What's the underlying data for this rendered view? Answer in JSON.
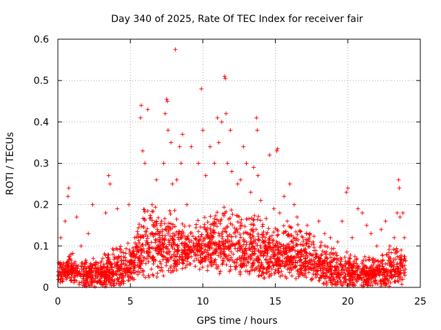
{
  "chart_data": {
    "type": "scatter",
    "title": "Day 340 of 2025, Rate Of TEC Index for receiver fair",
    "xlabel": "GPS time / hours",
    "ylabel": "ROTI / TECUs",
    "xlim": [
      0,
      25
    ],
    "ylim": [
      0,
      0.6
    ],
    "xticks": [
      0,
      5,
      10,
      15,
      20,
      25
    ],
    "xtick_labels": [
      "0",
      "5",
      "10",
      "15",
      "20",
      "25"
    ],
    "yticks": [
      0,
      0.1,
      0.2,
      0.3,
      0.4,
      0.5,
      0.6
    ],
    "ytick_labels": [
      "0",
      "0.1",
      "0.2",
      "0.3",
      "0.4",
      "0.5",
      "0.6"
    ],
    "grid": true,
    "marker": "+",
    "color": "#ff0000",
    "series": [
      {
        "name": "ROTI",
        "x": [
          0.2,
          0.5,
          0.7,
          0.75,
          0.9,
          1.3,
          1.6,
          2.1,
          2.4,
          3.3,
          3.5,
          3.6,
          4.1,
          4.9,
          5.3,
          5.7,
          5.75,
          5.85,
          6.0,
          6.2,
          6.5,
          6.8,
          7.3,
          7.4,
          7.5,
          7.55,
          7.6,
          7.8,
          7.9,
          8.1,
          8.2,
          8.4,
          8.5,
          8.6,
          8.9,
          9.2,
          9.7,
          9.9,
          10.0,
          10.2,
          10.5,
          10.8,
          11.0,
          11.1,
          11.3,
          11.5,
          11.55,
          11.6,
          11.7,
          11.9,
          12.0,
          12.4,
          12.6,
          12.8,
          13.0,
          13.3,
          13.5,
          13.7,
          13.75,
          13.8,
          14.0,
          14.3,
          14.6,
          14.9,
          15.1,
          15.15,
          15.3,
          15.6,
          16.0,
          16.3,
          16.5,
          16.9,
          17.2,
          17.6,
          18.0,
          18.4,
          18.8,
          19.0,
          19.3,
          19.6,
          19.9,
          20.0,
          20.3,
          20.7,
          21.0,
          21.3,
          21.6,
          22.0,
          22.3,
          22.6,
          22.9,
          23.2,
          23.4,
          23.5,
          23.55,
          23.6,
          23.8,
          23.9
        ],
        "y": [
          0.12,
          0.16,
          0.22,
          0.24,
          0.08,
          0.17,
          0.1,
          0.13,
          0.2,
          0.18,
          0.27,
          0.25,
          0.19,
          0.2,
          0.12,
          0.41,
          0.44,
          0.33,
          0.3,
          0.43,
          0.2,
          0.26,
          0.3,
          0.42,
          0.455,
          0.45,
          0.38,
          0.35,
          0.25,
          0.575,
          0.26,
          0.34,
          0.3,
          0.37,
          0.2,
          0.34,
          0.3,
          0.48,
          0.38,
          0.27,
          0.34,
          0.3,
          0.41,
          0.35,
          0.4,
          0.51,
          0.505,
          0.42,
          0.3,
          0.38,
          0.28,
          0.25,
          0.26,
          0.34,
          0.3,
          0.23,
          0.29,
          0.41,
          0.38,
          0.27,
          0.21,
          0.12,
          0.32,
          0.19,
          0.33,
          0.335,
          0.18,
          0.22,
          0.25,
          0.2,
          0.17,
          0.12,
          0.15,
          0.11,
          0.16,
          0.13,
          0.12,
          0.08,
          0.11,
          0.16,
          0.23,
          0.24,
          0.12,
          0.19,
          0.18,
          0.15,
          0.13,
          0.1,
          0.14,
          0.16,
          0.1,
          0.12,
          0.18,
          0.26,
          0.24,
          0.17,
          0.18,
          0.12
        ]
      }
    ],
    "dense_band": {
      "description": "envelope of the dense cloud of points, in data units",
      "hours": [
        0,
        1,
        2,
        3,
        4,
        5,
        5.5,
        6,
        7,
        7.5,
        8,
        9,
        10,
        11,
        11.5,
        12,
        13,
        14,
        15,
        16,
        17,
        18,
        19,
        20,
        21,
        22,
        23,
        24
      ],
      "lower": [
        0.01,
        0.01,
        0.0,
        0.0,
        0.0,
        0.01,
        0.02,
        0.02,
        0.02,
        0.03,
        0.03,
        0.05,
        0.04,
        0.03,
        0.03,
        0.03,
        0.03,
        0.02,
        0.02,
        0.02,
        0.02,
        0.01,
        0.0,
        0.0,
        0.0,
        0.0,
        0.0,
        0.01
      ],
      "upper": [
        0.08,
        0.09,
        0.08,
        0.08,
        0.1,
        0.12,
        0.16,
        0.22,
        0.2,
        0.22,
        0.2,
        0.15,
        0.18,
        0.2,
        0.22,
        0.21,
        0.2,
        0.18,
        0.16,
        0.17,
        0.15,
        0.12,
        0.1,
        0.09,
        0.08,
        0.08,
        0.1,
        0.09
      ]
    }
  }
}
